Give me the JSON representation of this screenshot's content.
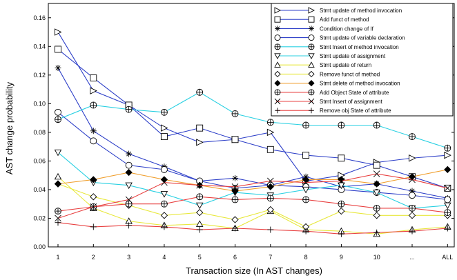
{
  "chart_data": {
    "type": "line",
    "xlabel": "Transaction size (In AST changes)",
    "ylabel": "AST change probability",
    "categories": [
      "1",
      "2",
      "3",
      "4",
      "5",
      "6",
      "7",
      "8",
      "9",
      "10",
      "...",
      "ALL"
    ],
    "ylim": [
      0,
      0.17
    ],
    "yticks": [
      "0.00",
      "0.02",
      "0.04",
      "0.06",
      "0.08",
      "0.10",
      "0.12",
      "0.14",
      "0.16"
    ],
    "legend_position": "top-right",
    "grid": false,
    "series": [
      {
        "name": "Stmt update of method invocation",
        "color": "#2d3fc8",
        "marker": "triangle-right",
        "values": [
          0.15,
          0.109,
          0.099,
          0.083,
          0.073,
          0.075,
          0.08,
          0.046,
          0.05,
          0.059,
          0.062,
          0.064
        ]
      },
      {
        "name": "Add funct of method",
        "color": "#2d3fc8",
        "marker": "square",
        "values": [
          0.138,
          0.118,
          0.099,
          0.077,
          0.083,
          0.075,
          0.068,
          0.064,
          0.062,
          0.057,
          0.049,
          0.041
        ]
      },
      {
        "name": "Condition change of If",
        "color": "#2d3fc8",
        "marker": "asterisk",
        "values": [
          0.125,
          0.081,
          0.065,
          0.056,
          0.046,
          0.048,
          0.043,
          0.049,
          0.042,
          0.044,
          0.039,
          0.034
        ]
      },
      {
        "name": "Stmt update of variable declaration",
        "color": "#2d3fc8",
        "marker": "circle",
        "values": [
          0.094,
          0.074,
          0.057,
          0.054,
          0.046,
          0.041,
          0.043,
          0.042,
          0.04,
          0.038,
          0.036,
          0.033
        ]
      },
      {
        "name": "Stmt Insert of method invocation",
        "color": "#2ad0e2",
        "marker": "circle-plus",
        "values": [
          0.089,
          0.099,
          0.096,
          0.094,
          0.108,
          0.093,
          0.087,
          0.085,
          0.085,
          0.085,
          0.077,
          0.069
        ]
      },
      {
        "name": "Stmt update of assignment",
        "color": "#2ad0e2",
        "marker": "triangle-down",
        "values": [
          0.066,
          0.045,
          0.043,
          0.037,
          0.029,
          0.038,
          0.036,
          0.04,
          0.043,
          0.038,
          0.027,
          0.029
        ]
      },
      {
        "name": "Stmt update of return",
        "color": "#e8e83c",
        "marker": "triangle-up",
        "values": [
          0.049,
          0.027,
          0.018,
          0.015,
          0.016,
          0.013,
          0.025,
          0.012,
          0.011,
          0.009,
          0.012,
          0.014
        ]
      },
      {
        "name": "Remove funct of method",
        "color": "#e8e83c",
        "marker": "diamond",
        "values": [
          0.044,
          0.035,
          0.029,
          0.022,
          0.024,
          0.019,
          0.026,
          0.014,
          0.025,
          0.022,
          0.022,
          0.022
        ]
      },
      {
        "name": "Stmt delete of method invocation",
        "color": "#f0a030",
        "marker": "diamond-filled",
        "values": [
          0.044,
          0.047,
          0.052,
          0.047,
          0.043,
          0.039,
          0.042,
          0.047,
          0.047,
          0.044,
          0.049,
          0.054
        ]
      },
      {
        "name": "Add Object State of attribute",
        "color": "#e84040",
        "marker": "circle-plus",
        "values": [
          0.025,
          0.028,
          0.03,
          0.03,
          0.035,
          0.033,
          0.034,
          0.033,
          0.03,
          0.027,
          0.027,
          0.024
        ]
      },
      {
        "name": "Stmt Insert of assignment",
        "color": "#e84040",
        "marker": "cross",
        "values": [
          0.02,
          0.028,
          0.033,
          0.045,
          0.043,
          0.042,
          0.046,
          0.045,
          0.046,
          0.051,
          0.047,
          0.041
        ]
      },
      {
        "name": "Remove obj State of attribute",
        "color": "#e84040",
        "marker": "plus",
        "values": [
          0.017,
          0.014,
          0.015,
          0.014,
          0.012,
          0.013,
          0.012,
          0.011,
          0.009,
          0.01,
          0.011,
          0.013
        ]
      }
    ]
  }
}
